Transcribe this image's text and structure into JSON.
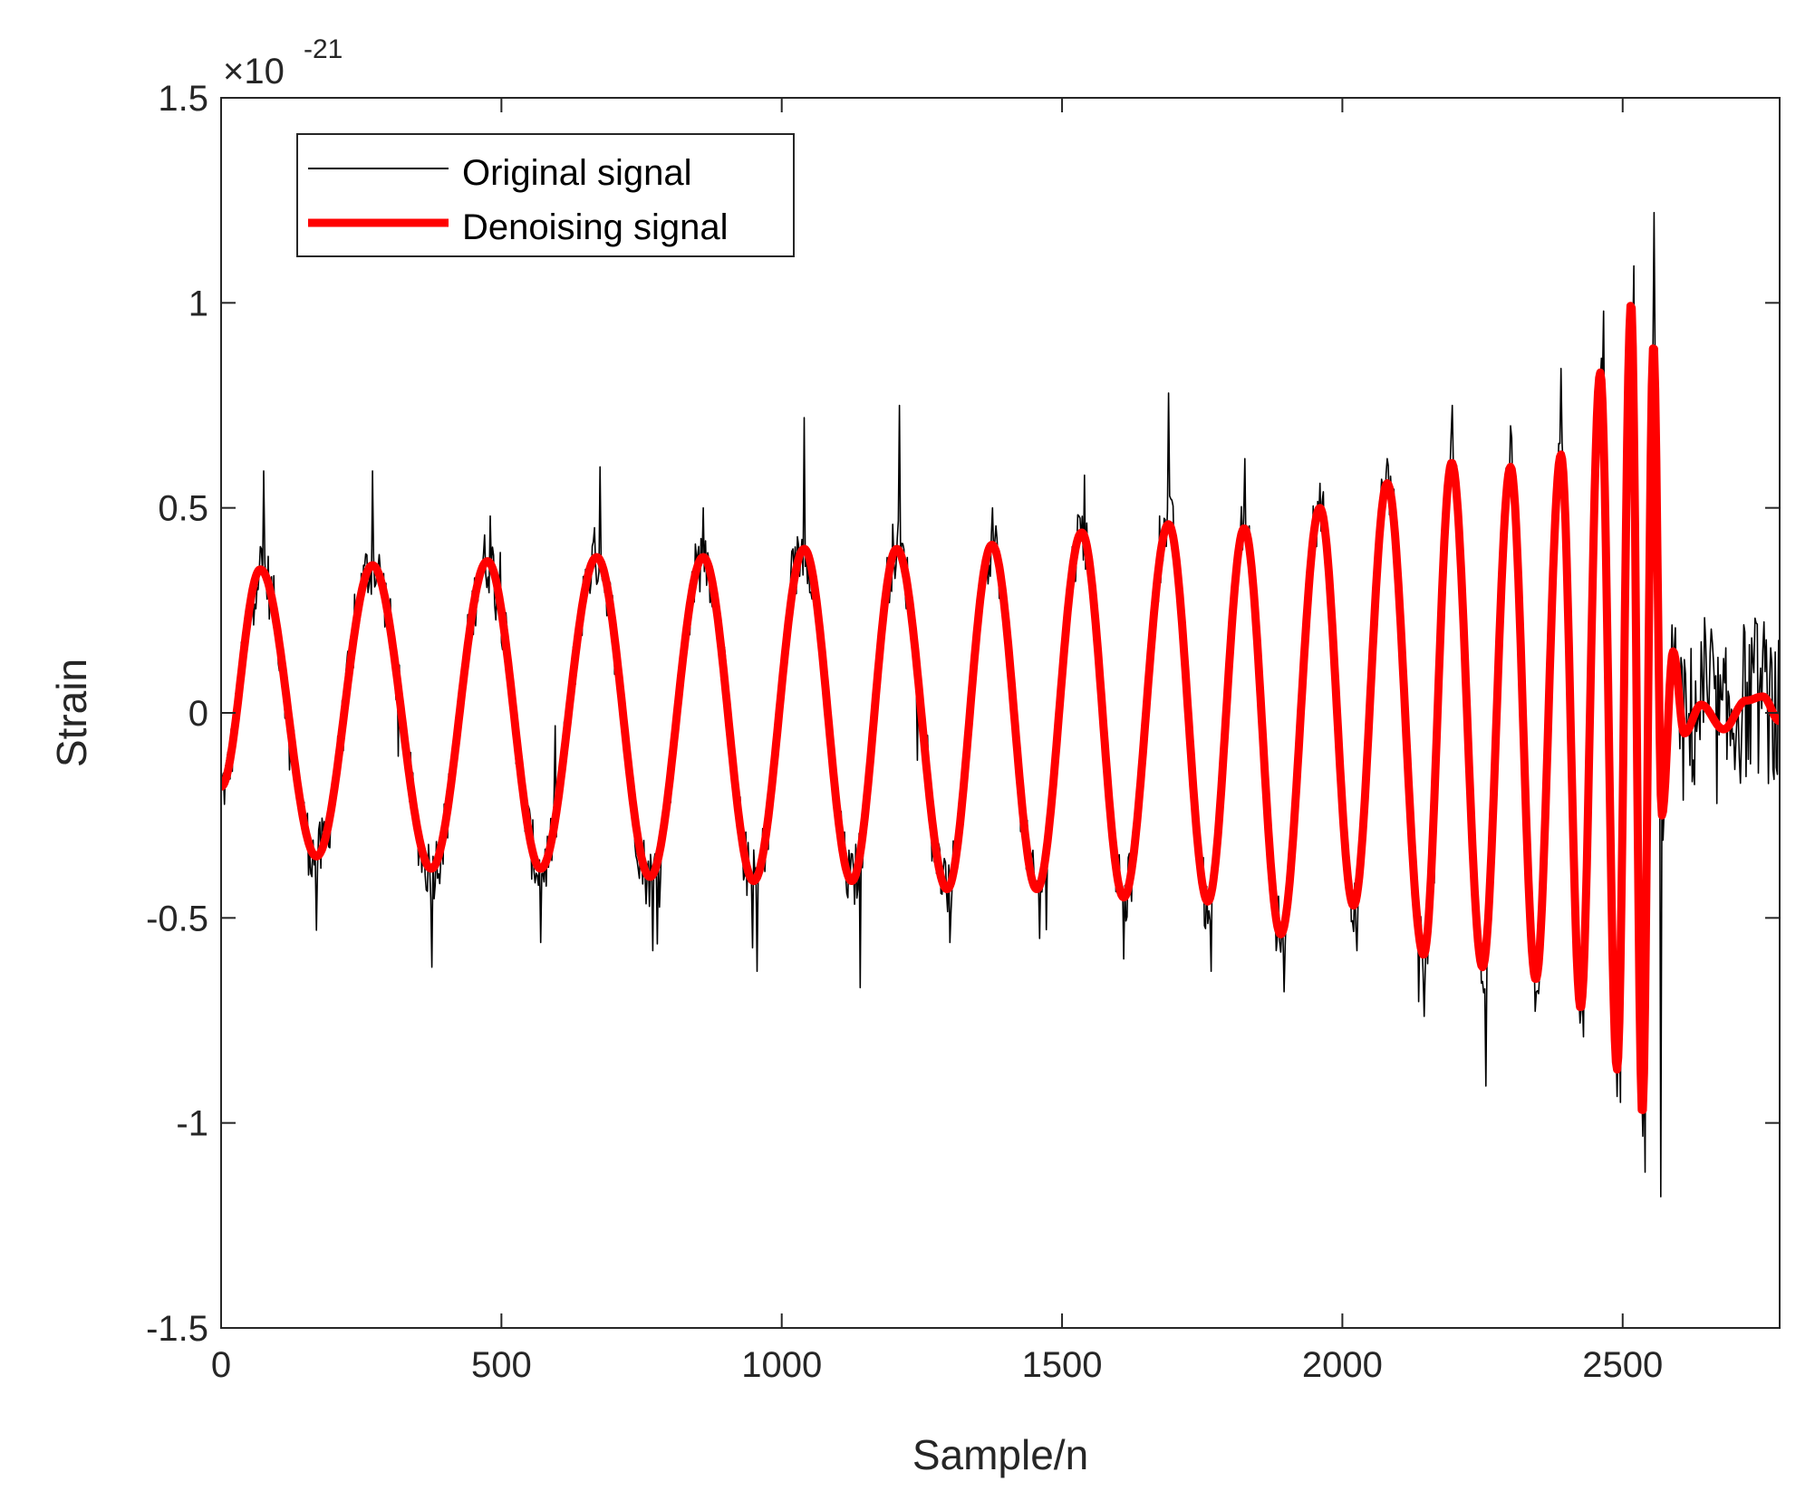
{
  "chart_data": {
    "type": "line",
    "xlabel": "Sample/n",
    "ylabel": "Strain",
    "exponent_label": {
      "base": "×10",
      "power": "-21"
    },
    "xlim": [
      0,
      2780
    ],
    "ylim": [
      -1.5,
      1.5
    ],
    "xticks": [
      0,
      500,
      1000,
      1500,
      2000,
      2500
    ],
    "xtick_labels": [
      "0",
      "500",
      "1000",
      "1500",
      "2000",
      "2500"
    ],
    "yticks": [
      -1.5,
      -1,
      -0.5,
      0,
      0.5,
      1,
      1.5
    ],
    "ytick_labels": [
      "-1.5",
      "-1",
      "-0.5",
      "0",
      "0.5",
      "1",
      "1.5"
    ],
    "grid": false,
    "legend_position": "top-left",
    "series": [
      {
        "name": "Original signal",
        "color": "#000000",
        "style": "thin-noisy"
      },
      {
        "name": "Denoising signal",
        "color": "#ff0000",
        "style": "thick"
      }
    ],
    "denoised_extrema": [
      {
        "x": 0,
        "y": -0.18
      },
      {
        "x": 70,
        "y": 0.35
      },
      {
        "x": 170,
        "y": -0.35
      },
      {
        "x": 270,
        "y": 0.36
      },
      {
        "x": 375,
        "y": -0.38
      },
      {
        "x": 475,
        "y": 0.37
      },
      {
        "x": 570,
        "y": -0.38
      },
      {
        "x": 670,
        "y": 0.38
      },
      {
        "x": 765,
        "y": -0.4
      },
      {
        "x": 860,
        "y": 0.38
      },
      {
        "x": 950,
        "y": -0.41
      },
      {
        "x": 1040,
        "y": 0.4
      },
      {
        "x": 1125,
        "y": -0.41
      },
      {
        "x": 1205,
        "y": 0.4
      },
      {
        "x": 1295,
        "y": -0.43
      },
      {
        "x": 1375,
        "y": 0.41
      },
      {
        "x": 1455,
        "y": -0.43
      },
      {
        "x": 1535,
        "y": 0.44
      },
      {
        "x": 1610,
        "y": -0.45
      },
      {
        "x": 1690,
        "y": 0.46
      },
      {
        "x": 1760,
        "y": -0.46
      },
      {
        "x": 1825,
        "y": 0.45
      },
      {
        "x": 1890,
        "y": -0.54
      },
      {
        "x": 1960,
        "y": 0.5
      },
      {
        "x": 2020,
        "y": -0.47
      },
      {
        "x": 2080,
        "y": 0.56
      },
      {
        "x": 2145,
        "y": -0.59
      },
      {
        "x": 2195,
        "y": 0.61
      },
      {
        "x": 2250,
        "y": -0.62
      },
      {
        "x": 2300,
        "y": 0.6
      },
      {
        "x": 2345,
        "y": -0.65
      },
      {
        "x": 2390,
        "y": 0.63
      },
      {
        "x": 2425,
        "y": -0.72
      },
      {
        "x": 2460,
        "y": 0.83
      },
      {
        "x": 2490,
        "y": -0.87
      },
      {
        "x": 2515,
        "y": 1.0
      },
      {
        "x": 2535,
        "y": -0.98
      },
      {
        "x": 2555,
        "y": 0.9
      },
      {
        "x": 2570,
        "y": -0.25
      },
      {
        "x": 2590,
        "y": 0.15
      },
      {
        "x": 2610,
        "y": -0.05
      },
      {
        "x": 2640,
        "y": 0.02
      },
      {
        "x": 2680,
        "y": -0.04
      },
      {
        "x": 2720,
        "y": 0.03
      },
      {
        "x": 2750,
        "y": 0.04
      },
      {
        "x": 2780,
        "y": -0.02
      }
    ],
    "noise_amplitude": 0.08,
    "noise_spikes": [
      {
        "x": 75,
        "y": 0.59
      },
      {
        "x": 170,
        "y": -0.53
      },
      {
        "x": 270,
        "y": 0.59
      },
      {
        "x": 375,
        "y": -0.62
      },
      {
        "x": 480,
        "y": 0.48
      },
      {
        "x": 570,
        "y": -0.56
      },
      {
        "x": 675,
        "y": 0.6
      },
      {
        "x": 770,
        "y": -0.58
      },
      {
        "x": 860,
        "y": 0.5
      },
      {
        "x": 955,
        "y": -0.63
      },
      {
        "x": 1040,
        "y": 0.72
      },
      {
        "x": 1140,
        "y": -0.67
      },
      {
        "x": 1210,
        "y": 0.75
      },
      {
        "x": 1300,
        "y": -0.56
      },
      {
        "x": 1375,
        "y": 0.5
      },
      {
        "x": 1460,
        "y": -0.55
      },
      {
        "x": 1540,
        "y": 0.58
      },
      {
        "x": 1610,
        "y": -0.6
      },
      {
        "x": 1690,
        "y": 0.78
      },
      {
        "x": 1765,
        "y": -0.63
      },
      {
        "x": 1825,
        "y": 0.62
      },
      {
        "x": 1895,
        "y": -0.68
      },
      {
        "x": 1960,
        "y": 0.56
      },
      {
        "x": 2025,
        "y": -0.58
      },
      {
        "x": 2080,
        "y": 0.62
      },
      {
        "x": 2145,
        "y": -0.74
      },
      {
        "x": 2195,
        "y": 0.75
      },
      {
        "x": 2255,
        "y": -0.91
      },
      {
        "x": 2300,
        "y": 0.7
      },
      {
        "x": 2345,
        "y": -0.68
      },
      {
        "x": 2390,
        "y": 0.84
      },
      {
        "x": 2430,
        "y": -0.79
      },
      {
        "x": 2465,
        "y": 0.98
      },
      {
        "x": 2495,
        "y": -0.95
      },
      {
        "x": 2520,
        "y": 1.09
      },
      {
        "x": 2540,
        "y": -1.12
      },
      {
        "x": 2555,
        "y": 1.22
      },
      {
        "x": 2568,
        "y": -1.18
      }
    ]
  }
}
